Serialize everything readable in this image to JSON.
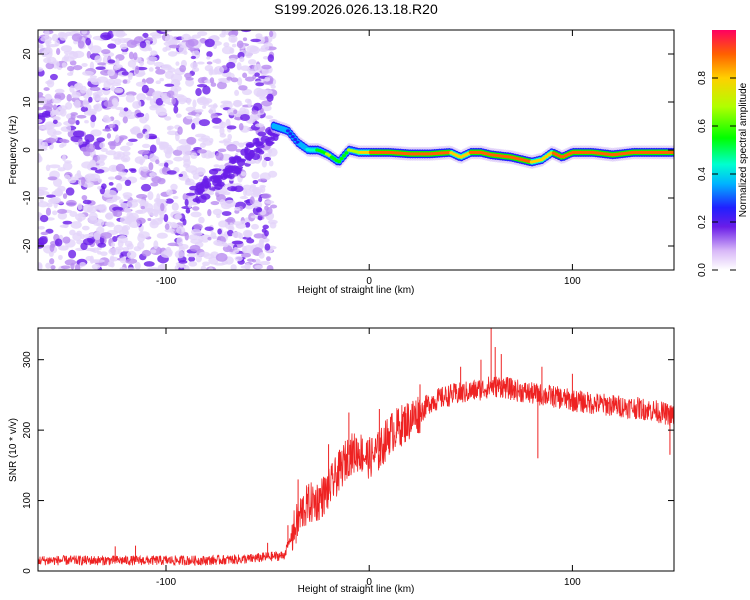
{
  "title": "S199.2026.026.13.18.R20",
  "chart_data": [
    {
      "type": "heatmap",
      "title": "S199.2026.026.13.18.R20",
      "xlabel": "Height of straight line (km)",
      "ylabel": "Frequency (Hz)",
      "xlim": [
        -163,
        150
      ],
      "ylim": [
        -25,
        25
      ],
      "x_ticks": [
        -100,
        0,
        100
      ],
      "y_ticks": [
        -20,
        -10,
        0,
        10,
        20
      ],
      "grid": false,
      "noise_region_x": [
        -163,
        -47
      ],
      "ridge": {
        "x": [
          -47,
          -40,
          -35,
          -30,
          -25,
          -20,
          -15,
          -10,
          -5,
          0,
          10,
          20,
          30,
          40,
          45,
          50,
          55,
          60,
          70,
          80,
          85,
          90,
          95,
          100,
          110,
          120,
          130,
          140,
          150
        ],
        "y": [
          5,
          4,
          1.5,
          0,
          0,
          -1,
          -2.5,
          0,
          -0.5,
          -0.5,
          -0.5,
          -0.8,
          -0.8,
          -0.5,
          -1.5,
          -0.5,
          -0.5,
          -1,
          -1.5,
          -2.5,
          -2,
          -0.5,
          -1.5,
          -0.5,
          -0.5,
          -1,
          -0.5,
          -0.5,
          -0.5
        ],
        "amplitude": [
          0.35,
          0.3,
          0.35,
          0.45,
          0.6,
          0.7,
          0.6,
          0.7,
          0.8,
          0.9,
          0.95,
          0.95,
          0.9,
          0.9,
          0.85,
          0.9,
          0.95,
          0.95,
          0.95,
          0.9,
          0.85,
          0.9,
          0.95,
          0.95,
          0.9,
          0.9,
          0.95,
          0.95,
          0.9
        ]
      },
      "colorbar": {
        "label": "Normalized spectral amplitude",
        "range": [
          0,
          1
        ],
        "ticks": [
          "0.0",
          "0.2",
          "0.4",
          "0.6",
          "0.8"
        ],
        "tick_values": [
          0,
          0.2,
          0.4,
          0.6,
          0.8
        ]
      }
    },
    {
      "type": "line",
      "xlabel": "Height of straight line (km)",
      "ylabel": "SNR (10 * v/v)",
      "xlim": [
        -163,
        150
      ],
      "ylim": [
        0,
        345
      ],
      "x_ticks": [
        -100,
        0,
        100
      ],
      "y_ticks": [
        0,
        100,
        200,
        300
      ],
      "series": [
        {
          "name": "SNR",
          "color": "#ee2222",
          "x": [
            -163,
            -140,
            -120,
            -100,
            -80,
            -60,
            -50,
            -42,
            -38,
            -33,
            -30,
            -25,
            -20,
            -15,
            -10,
            -5,
            0,
            5,
            10,
            15,
            20,
            25,
            30,
            35,
            40,
            45,
            50,
            55,
            60,
            65,
            70,
            75,
            80,
            85,
            90,
            95,
            100,
            110,
            120,
            130,
            140,
            150
          ],
          "y": [
            15,
            15,
            15,
            15,
            15,
            17,
            20,
            22,
            50,
            85,
            95,
            100,
            115,
            140,
            165,
            170,
            160,
            170,
            195,
            205,
            215,
            225,
            240,
            245,
            250,
            252,
            255,
            258,
            262,
            262,
            258,
            255,
            252,
            250,
            248,
            245,
            242,
            238,
            235,
            232,
            228,
            220
          ],
          "spikes": [
            {
              "x": -125,
              "y": 35
            },
            {
              "x": -115,
              "y": 36
            },
            {
              "x": -50,
              "y": 40
            },
            {
              "x": -40,
              "y": 65
            },
            {
              "x": -35,
              "y": 130
            },
            {
              "x": -20,
              "y": 180
            },
            {
              "x": -10,
              "y": 225
            },
            {
              "x": 5,
              "y": 230
            },
            {
              "x": 25,
              "y": 265
            },
            {
              "x": 45,
              "y": 290
            },
            {
              "x": 55,
              "y": 300
            },
            {
              "x": 60,
              "y": 345
            },
            {
              "x": 62,
              "y": 318
            },
            {
              "x": 65,
              "y": 308
            },
            {
              "x": 83,
              "y": 160
            },
            {
              "x": 85,
              "y": 290
            },
            {
              "x": 100,
              "y": 280
            },
            {
              "x": 148,
              "y": 165
            }
          ]
        }
      ]
    }
  ]
}
